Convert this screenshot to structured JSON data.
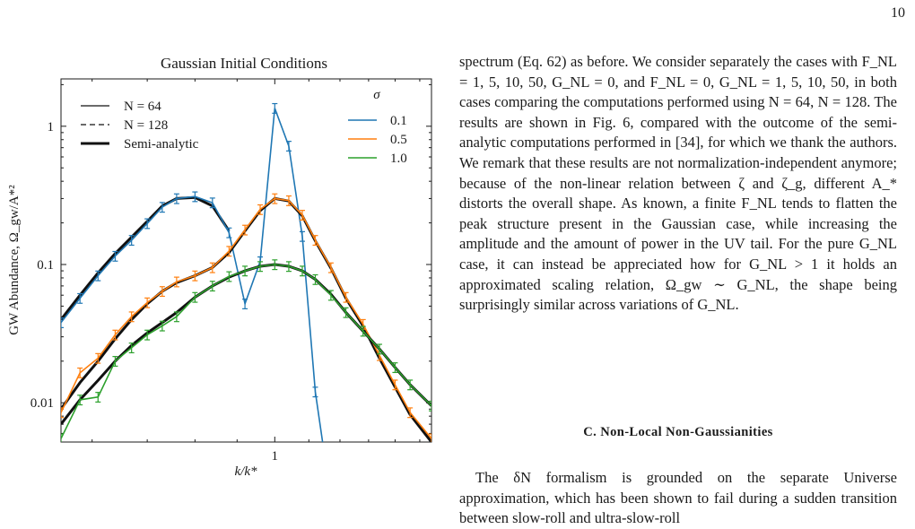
{
  "page_number": "10",
  "paragraph1": "spectrum (Eq. 62) as before. We consider separately the cases with F_NL = 1, 5, 10, 50, G_NL = 0, and F_NL = 0, G_NL = 1, 5, 10, 50, in both cases comparing the computations performed using N = 64, N = 128. The results are shown in Fig. 6, compared with the outcome of the semi-analytic computations performed in [34], for which we thank the authors. We remark that these results are not normalization-independent anymore; because of the non-linear relation between ζ and ζ_g, different A_* distorts the overall shape. As known, a finite F_NL tends to flatten the peak structure present in the Gaussian case, while increasing the amplitude and the amount of power in the UV tail. For the pure G_NL case, it can instead be appreciated how for G_NL > 1 it holds an approximated scaling relation, Ω_gw ∼ G_NL, the shape being surprisingly similar across variations of G_NL.",
  "section_heading": "C.   Non-Local Non-Gaussianities",
  "paragraph2": "The δN formalism is grounded on the separate Universe approximation, which has been shown to fail during a sudden transition between slow-roll and ultra-slow-roll",
  "refs": {
    "eq": "62",
    "fig": "6",
    "cite": "[34]"
  },
  "chart_data": {
    "type": "line",
    "title": "Gaussian Initial Conditions",
    "xlabel": "k/k*",
    "ylabel": "GW Abundance, Ω_gw/A*²",
    "x_scale": "log",
    "y_scale": "log",
    "xlim": [
      0.55,
      1.55
    ],
    "ylim": [
      0.0052,
      2.2
    ],
    "x_tick_labels": [
      "1"
    ],
    "y_tick_labels": [
      "0.01",
      "0.1",
      "1"
    ],
    "legend_styles": [
      {
        "label": "N = 64",
        "style": "solid"
      },
      {
        "label": "N = 128",
        "style": "dashed"
      },
      {
        "label": "Semi-analytic",
        "style": "thick"
      }
    ],
    "legend_sigma_title": "σ",
    "legend_sigma": [
      {
        "label": "0.1",
        "color": "#1f77b4"
      },
      {
        "label": "0.5",
        "color": "#ff7f0e"
      },
      {
        "label": "1.0",
        "color": "#2ca02c"
      }
    ],
    "series": [
      {
        "name": "0.1",
        "color": "#1f77b4",
        "x": [
          0.55,
          0.58,
          0.61,
          0.64,
          0.67,
          0.7,
          0.73,
          0.76,
          0.8,
          0.84,
          0.88,
          0.92,
          0.96,
          1.0,
          1.04,
          1.08,
          1.12,
          1.17
        ],
        "y": [
          0.038,
          0.057,
          0.083,
          0.115,
          0.15,
          0.198,
          0.26,
          0.3,
          0.31,
          0.28,
          0.17,
          0.052,
          0.105,
          1.35,
          0.72,
          0.16,
          0.012,
          0.002
        ],
        "semi": [
          0.04,
          0.06,
          0.087,
          0.12,
          0.158,
          0.205,
          0.265,
          0.3,
          0.305,
          0.265,
          0.175
        ]
      },
      {
        "name": "0.5",
        "color": "#ff7f0e",
        "x": [
          0.55,
          0.58,
          0.61,
          0.64,
          0.67,
          0.7,
          0.73,
          0.76,
          0.8,
          0.84,
          0.88,
          0.92,
          0.96,
          1.0,
          1.04,
          1.08,
          1.12,
          1.17,
          1.22,
          1.28,
          1.34,
          1.4,
          1.46,
          1.55
        ],
        "y": [
          0.0085,
          0.0165,
          0.021,
          0.031,
          0.042,
          0.053,
          0.064,
          0.075,
          0.083,
          0.095,
          0.125,
          0.178,
          0.25,
          0.3,
          0.29,
          0.228,
          0.15,
          0.095,
          0.058,
          0.037,
          0.022,
          0.0135,
          0.0085,
          0.0055
        ],
        "semi": [
          0.009,
          0.014,
          0.02,
          0.029,
          0.04,
          0.052,
          0.064,
          0.074,
          0.083,
          0.095,
          0.122,
          0.175,
          0.245,
          0.3,
          0.288,
          0.225,
          0.148,
          0.094,
          0.057,
          0.036,
          0.021,
          0.013,
          0.0082,
          0.0052
        ]
      },
      {
        "name": "1.0",
        "color": "#2ca02c",
        "x": [
          0.55,
          0.58,
          0.61,
          0.64,
          0.67,
          0.7,
          0.73,
          0.76,
          0.8,
          0.84,
          0.88,
          0.92,
          0.96,
          1.0,
          1.04,
          1.08,
          1.12,
          1.17,
          1.22,
          1.28,
          1.34,
          1.4,
          1.46,
          1.55
        ],
        "y": [
          0.0055,
          0.0105,
          0.011,
          0.02,
          0.025,
          0.031,
          0.036,
          0.042,
          0.058,
          0.07,
          0.082,
          0.09,
          0.097,
          0.1,
          0.097,
          0.09,
          0.078,
          0.06,
          0.045,
          0.033,
          0.0245,
          0.018,
          0.0135,
          0.0095
        ],
        "semi": [
          0.007,
          0.0105,
          0.0145,
          0.02,
          0.026,
          0.032,
          0.038,
          0.045,
          0.058,
          0.07,
          0.081,
          0.09,
          0.097,
          0.1,
          0.097,
          0.09,
          0.078,
          0.061,
          0.045,
          0.033,
          0.0245,
          0.018,
          0.0135,
          0.0095
        ]
      }
    ]
  }
}
